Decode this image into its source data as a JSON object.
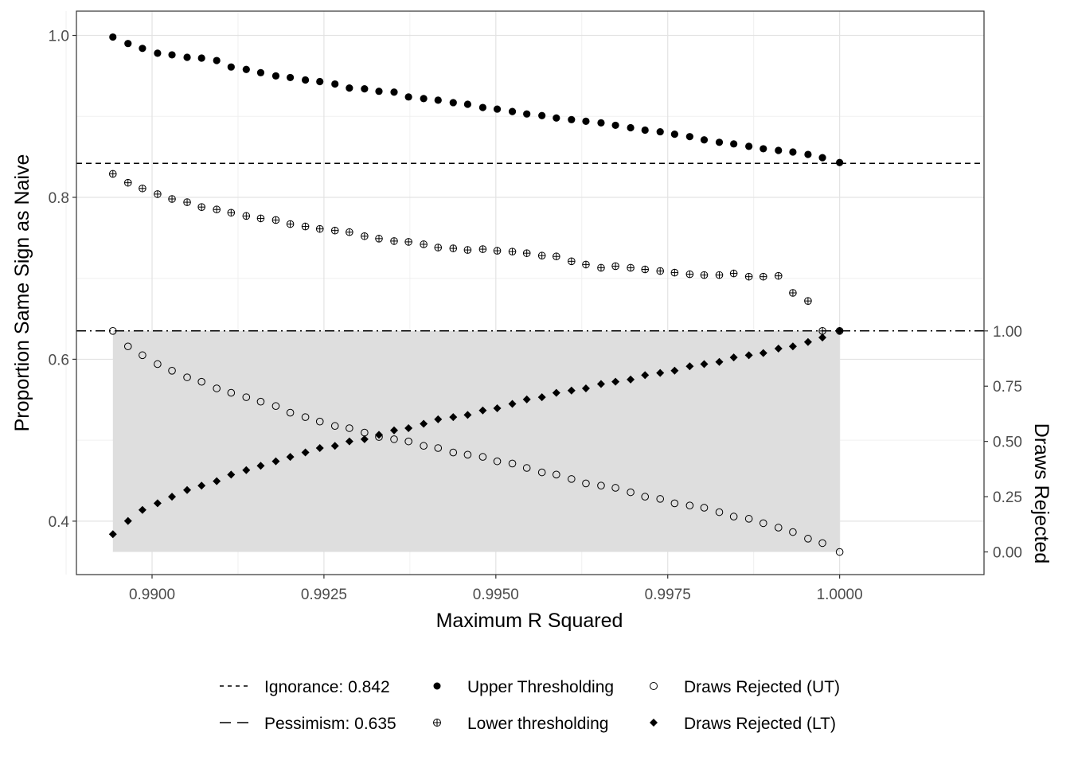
{
  "chart_data": {
    "type": "scatter",
    "xlabel": "Maximum R Squared",
    "ylabel": "Proportion Same Sign as Naive",
    "y2label": "Draws Rejected",
    "xlim": [
      0.9889,
      1.0021
    ],
    "ylim": [
      0.334,
      1.03
    ],
    "y2lim": [
      0.0,
      1.0
    ],
    "x_ticks": [
      0.99,
      0.9925,
      0.995,
      0.9975,
      1.0
    ],
    "x_tick_labels": [
      "0.9900",
      "0.9925",
      "0.9950",
      "0.9975",
      "1.0000"
    ],
    "y_ticks": [
      0.4,
      0.6,
      0.8,
      1.0
    ],
    "y_tick_labels": [
      "0.4",
      "0.6",
      "0.8",
      "1.0"
    ],
    "y2_ticks": [
      0.0,
      0.25,
      0.5,
      0.75,
      1.0
    ],
    "y2_tick_labels": [
      "0.00",
      "0.25",
      "0.50",
      "0.75",
      "1.00"
    ],
    "grid": true,
    "legend_position": "bottom",
    "shaded_region": {
      "x": [
        0.98943,
        1.0
      ],
      "y": [
        0.362,
        0.635
      ]
    },
    "hlines": [
      {
        "name": "Ignorance: 0.842",
        "y": 0.842,
        "style": "dashed"
      },
      {
        "name": "Pessimism: 0.635",
        "y": 0.635,
        "style": "dotdash"
      }
    ],
    "x": [
      0.98943,
      0.98965,
      0.98986,
      0.99008,
      0.99029,
      0.99051,
      0.99072,
      0.99094,
      0.99115,
      0.99137,
      0.99158,
      0.9918,
      0.99201,
      0.99223,
      0.99244,
      0.99266,
      0.99287,
      0.99309,
      0.9933,
      0.99352,
      0.99373,
      0.99395,
      0.99416,
      0.99438,
      0.99459,
      0.99481,
      0.99502,
      0.99524,
      0.99545,
      0.99567,
      0.99588,
      0.9961,
      0.99631,
      0.99653,
      0.99674,
      0.99696,
      0.99717,
      0.99739,
      0.9976,
      0.99782,
      0.99803,
      0.99825,
      0.99846,
      0.99868,
      0.99889,
      0.99911,
      0.99932,
      0.99954,
      0.99975,
      1.0
    ],
    "series": [
      {
        "name": "Upper Thresholding",
        "marker": "filled-circle",
        "axis": "left",
        "values": [
          0.998,
          0.99,
          0.984,
          0.978,
          0.976,
          0.973,
          0.972,
          0.969,
          0.961,
          0.958,
          0.954,
          0.95,
          0.948,
          0.945,
          0.943,
          0.94,
          0.935,
          0.934,
          0.931,
          0.93,
          0.924,
          0.922,
          0.92,
          0.917,
          0.915,
          0.911,
          0.909,
          0.906,
          0.903,
          0.901,
          0.898,
          0.896,
          0.894,
          0.892,
          0.889,
          0.886,
          0.883,
          0.881,
          0.878,
          0.875,
          0.871,
          0.868,
          0.866,
          0.863,
          0.86,
          0.858,
          0.856,
          0.853,
          0.849,
          0.843
        ]
      },
      {
        "name": "Lower thresholding",
        "marker": "crossed-circle",
        "axis": "left",
        "values": [
          0.829,
          0.818,
          0.811,
          0.804,
          0.798,
          0.794,
          0.788,
          0.785,
          0.781,
          0.777,
          0.774,
          0.772,
          0.767,
          0.764,
          0.761,
          0.759,
          0.757,
          0.752,
          0.749,
          0.746,
          0.745,
          0.742,
          0.738,
          0.737,
          0.735,
          0.736,
          0.734,
          0.733,
          0.731,
          0.728,
          0.727,
          0.721,
          0.717,
          0.713,
          0.715,
          0.713,
          0.711,
          0.709,
          0.707,
          0.705,
          0.704,
          0.704,
          0.706,
          0.702,
          0.702,
          0.703,
          0.682,
          0.672,
          0.635,
          0.635
        ]
      },
      {
        "name": "Draws Rejected (UT)",
        "marker": "open-circle",
        "axis": "right",
        "values": [
          1.0,
          0.93,
          0.89,
          0.85,
          0.82,
          0.79,
          0.77,
          0.74,
          0.72,
          0.7,
          0.68,
          0.66,
          0.63,
          0.61,
          0.59,
          0.57,
          0.56,
          0.54,
          0.52,
          0.51,
          0.5,
          0.48,
          0.47,
          0.45,
          0.44,
          0.43,
          0.41,
          0.4,
          0.38,
          0.36,
          0.35,
          0.33,
          0.31,
          0.3,
          0.29,
          0.27,
          0.25,
          0.24,
          0.22,
          0.21,
          0.2,
          0.18,
          0.16,
          0.15,
          0.13,
          0.11,
          0.09,
          0.06,
          0.04,
          0.0
        ]
      },
      {
        "name": "Draws Rejected (LT)",
        "marker": "filled-diamond",
        "axis": "right",
        "values": [
          0.08,
          0.14,
          0.19,
          0.22,
          0.25,
          0.28,
          0.3,
          0.32,
          0.35,
          0.37,
          0.39,
          0.41,
          0.43,
          0.45,
          0.47,
          0.48,
          0.5,
          0.51,
          0.53,
          0.55,
          0.56,
          0.58,
          0.6,
          0.61,
          0.62,
          0.64,
          0.65,
          0.67,
          0.69,
          0.7,
          0.72,
          0.73,
          0.74,
          0.76,
          0.77,
          0.78,
          0.8,
          0.81,
          0.82,
          0.84,
          0.85,
          0.86,
          0.88,
          0.89,
          0.9,
          0.92,
          0.93,
          0.95,
          0.97,
          1.0
        ]
      }
    ]
  },
  "legend": {
    "items": [
      {
        "label": "Ignorance: 0.842",
        "symbol": "short-dash"
      },
      {
        "label": "Pessimism: 0.635",
        "symbol": "long-dash"
      },
      {
        "label": "Upper Thresholding",
        "symbol": "filled-circle"
      },
      {
        "label": "Lower thresholding",
        "symbol": "crossed-circle"
      },
      {
        "label": "Draws Rejected (UT)",
        "symbol": "open-circle"
      },
      {
        "label": "Draws Rejected (LT)",
        "symbol": "filled-diamond"
      }
    ]
  }
}
